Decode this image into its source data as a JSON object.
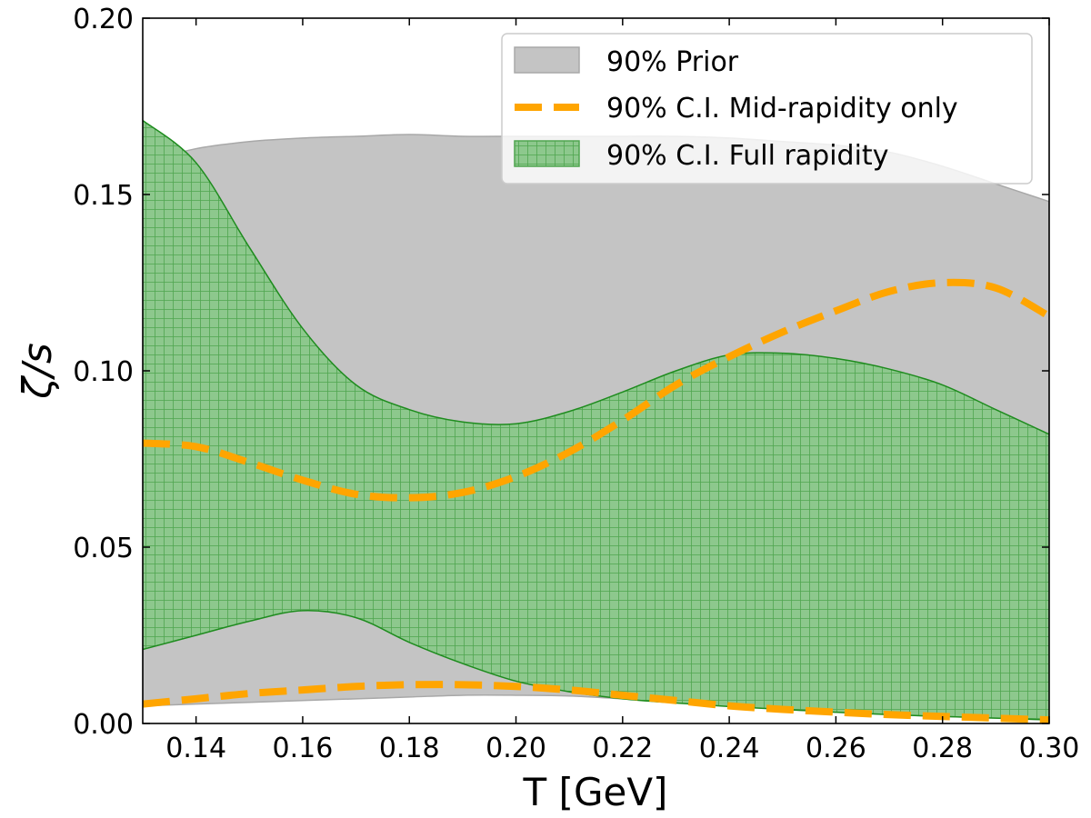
{
  "chart_data": {
    "type": "area",
    "xlabel": "T [GeV]",
    "ylabel": "ζ/s",
    "xlim": [
      0.13,
      0.3
    ],
    "ylim": [
      0.0,
      0.2
    ],
    "xticks": [
      "0.14",
      "0.16",
      "0.18",
      "0.20",
      "0.22",
      "0.24",
      "0.26",
      "0.28",
      "0.30"
    ],
    "yticks": [
      "0.00",
      "0.05",
      "0.10",
      "0.15",
      "0.20"
    ],
    "legend_position": "top-right",
    "colors": {
      "prior": "#c4c4c4",
      "prior_edge": "#a8a8a8",
      "full": "#8dc88d",
      "full_hatch": "#4fa54f",
      "full_edge": "#1e8c1e",
      "mid": "#ffa500"
    },
    "series": [
      {
        "name": "90% Prior",
        "kind": "band",
        "x": [
          0.13,
          0.14,
          0.15,
          0.16,
          0.17,
          0.18,
          0.19,
          0.2,
          0.21,
          0.22,
          0.23,
          0.24,
          0.25,
          0.26,
          0.27,
          0.28,
          0.29,
          0.3
        ],
        "upper": [
          0.159,
          0.163,
          0.165,
          0.166,
          0.1665,
          0.167,
          0.1665,
          0.1665,
          0.1665,
          0.1665,
          0.1665,
          0.166,
          0.165,
          0.164,
          0.162,
          0.158,
          0.153,
          0.148
        ],
        "lower": [
          0.005,
          0.0055,
          0.006,
          0.0065,
          0.007,
          0.0075,
          0.008,
          0.008,
          0.0078,
          0.007,
          0.006,
          0.005,
          0.004,
          0.0032,
          0.0025,
          0.002,
          0.0015,
          0.001
        ]
      },
      {
        "name": "90% C.I. Mid-rapidity only",
        "kind": "dashed-lines",
        "x": [
          0.13,
          0.14,
          0.15,
          0.16,
          0.17,
          0.18,
          0.19,
          0.2,
          0.21,
          0.22,
          0.23,
          0.24,
          0.25,
          0.26,
          0.27,
          0.28,
          0.29,
          0.3
        ],
        "upper": [
          0.0795,
          0.0785,
          0.074,
          0.069,
          0.065,
          0.064,
          0.0655,
          0.07,
          0.077,
          0.086,
          0.096,
          0.104,
          0.111,
          0.117,
          0.1225,
          0.125,
          0.1235,
          0.1155
        ],
        "lower": [
          0.0055,
          0.007,
          0.0085,
          0.0095,
          0.0105,
          0.011,
          0.011,
          0.0105,
          0.0095,
          0.008,
          0.0065,
          0.005,
          0.004,
          0.0032,
          0.0025,
          0.002,
          0.0015,
          0.001
        ]
      },
      {
        "name": "90% C.I. Full rapidity",
        "kind": "band",
        "x": [
          0.13,
          0.14,
          0.15,
          0.16,
          0.17,
          0.18,
          0.19,
          0.2,
          0.21,
          0.22,
          0.23,
          0.24,
          0.25,
          0.26,
          0.27,
          0.28,
          0.29,
          0.3
        ],
        "upper": [
          0.171,
          0.159,
          0.135,
          0.112,
          0.096,
          0.089,
          0.0855,
          0.085,
          0.0885,
          0.094,
          0.1,
          0.1045,
          0.105,
          0.1035,
          0.1005,
          0.096,
          0.089,
          0.082
        ],
        "lower": [
          0.021,
          0.025,
          0.029,
          0.032,
          0.03,
          0.023,
          0.017,
          0.012,
          0.009,
          0.007,
          0.0058,
          0.0048,
          0.004,
          0.0032,
          0.0025,
          0.002,
          0.0015,
          0.001
        ]
      }
    ]
  }
}
